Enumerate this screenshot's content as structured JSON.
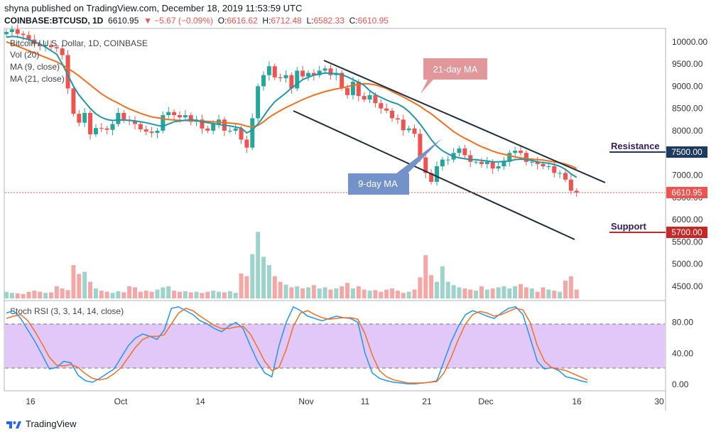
{
  "header": {
    "published": "shyna published on TradingView.com, December 18, 2019 11:53:59 UTC",
    "symbol": "COINBASE:BTCUSD, 1D",
    "price": "6610.95",
    "change": "▼ −5.67 (−0.09%)",
    "o_label": "O:",
    "o_val": "6616.62",
    "h_label": "H:",
    "h_val": "6712.48",
    "l_label": "L:",
    "l_val": "6582.33",
    "c_label": "C:",
    "c_val": "6610.95"
  },
  "legend": {
    "title": "Bitcoin / U.S. Dollar, 1D, COINBASE",
    "vol": "Vol (20)",
    "ma9": "MA (9, close)",
    "ma21": "MA (21, close)",
    "rsi": "Stoch RSI (3, 3, 14, 14, close)"
  },
  "annotations": {
    "ma21_callout": "21-day MA",
    "ma9_callout": "9-day MA",
    "resistance": "Resistance",
    "support": "Support"
  },
  "footer": {
    "brand": "TradingView"
  },
  "colors": {
    "up": "#26a69a",
    "down": "#ef5350",
    "ma9": "#2196a8",
    "ma21": "#f07020",
    "rsi_band": "#e1c8f8",
    "resistance_tag": "#1e3a5f",
    "support_tag": "#c62828"
  },
  "chart_data": {
    "type": "candlestick",
    "x_ticks": [
      "16",
      "Oct",
      "14",
      "Nov",
      "11",
      "21",
      "Dec",
      "16",
      "30"
    ],
    "y_ticks": [
      "10000.00",
      "9500.00",
      "9000.00",
      "8500.00",
      "8000.00",
      "7500.00",
      "7000.00",
      "6500.00",
      "6000.00",
      "5500.00",
      "5000.00",
      "4500.00"
    ],
    "rsi_ticks": [
      "80.00",
      "40.00",
      "0.00"
    ],
    "ylim": [
      4180,
      10300
    ],
    "rsi_ylim": [
      -8,
      108
    ],
    "last_price": "6610.95",
    "resistance_level": "7500.00",
    "support_level": "5700.00",
    "closes": [
      10220,
      10280,
      10180,
      10150,
      10050,
      9950,
      9900,
      9920,
      9880,
      9850,
      9700,
      8950,
      8380,
      8180,
      8400,
      7920,
      8060,
      8050,
      8020,
      8150,
      8400,
      8250,
      8220,
      8150,
      8030,
      7980,
      7950,
      8000,
      8350,
      8420,
      8350,
      8300,
      8350,
      8200,
      8250,
      8050,
      8000,
      8150,
      8250,
      8000,
      8000,
      8050,
      7800,
      7620,
      8280,
      9000,
      9250,
      9450,
      9200,
      9180,
      9250,
      8950,
      9350,
      9220,
      9300,
      9250,
      9350,
      9400,
      9250,
      9300,
      8960,
      8800,
      9100,
      8780,
      8700,
      8800,
      8620,
      8500,
      8450,
      8280,
      8250,
      8010,
      8050,
      7930,
      7400,
      7050,
      6850,
      7200,
      7350,
      7350,
      7500,
      7600,
      7450,
      7300,
      7300,
      7250,
      7300,
      7150,
      7200,
      7300,
      7500,
      7550,
      7500,
      7300,
      7300,
      7250,
      7200,
      7200,
      7050,
      7050,
      6900,
      6650,
      6610
    ],
    "ma9": [
      10100,
      10120,
      10110,
      10080,
      10050,
      10000,
      9950,
      9880,
      9800,
      9720,
      9500,
      9250,
      9000,
      8800,
      8650,
      8500,
      8380,
      8300,
      8250,
      8230,
      8240,
      8240,
      8230,
      8220,
      8200,
      8180,
      8150,
      8120,
      8100,
      8150,
      8200,
      8220,
      8230,
      8250,
      8230,
      8200,
      8180,
      8160,
      8140,
      8120,
      8110,
      8080,
      8060,
      7950,
      8020,
      8150,
      8320,
      8500,
      8650,
      8750,
      8850,
      8960,
      9050,
      9150,
      9200,
      9250,
      9270,
      9300,
      9290,
      9280,
      9260,
      9210,
      9150,
      9090,
      9020,
      8900,
      8810,
      8750,
      8690,
      8640,
      8600,
      8530,
      8430,
      8300,
      8150,
      7980,
      7800,
      7650,
      7550,
      7480,
      7420,
      7390,
      7370,
      7350,
      7350,
      7330,
      7320,
      7300,
      7300,
      7310,
      7320,
      7350,
      7360,
      7350,
      7330,
      7300,
      7280,
      7270,
      7240,
      7200,
      7130,
      7030,
      6950
    ],
    "ma21": [
      10000,
      9950,
      9900,
      9850,
      9800,
      9750,
      9700,
      9650,
      9600,
      9550,
      9480,
      9400,
      9320,
      9230,
      9130,
      9030,
      8930,
      8830,
      8750,
      8680,
      8620,
      8550,
      8490,
      8440,
      8390,
      8350,
      8310,
      8290,
      8270,
      8250,
      8240,
      8230,
      8230,
      8225,
      8220,
      8215,
      8210,
      8200,
      8190,
      8180,
      8170,
      8160,
      8140,
      8100,
      8080,
      8120,
      8200,
      8300,
      8380,
      8450,
      8520,
      8580,
      8640,
      8700,
      8750,
      8800,
      8840,
      8880,
      8910,
      8940,
      8960,
      8990,
      9020,
      9040,
      9060,
      9050,
      9030,
      8990,
      8950,
      8880,
      8820,
      8760,
      8690,
      8620,
      8550,
      8460,
      8380,
      8280,
      8180,
      8080,
      7980,
      7900,
      7830,
      7770,
      7700,
      7640,
      7590,
      7540,
      7500,
      7470,
      7440,
      7410,
      7390,
      7370,
      7360,
      7350,
      7340,
      7320,
      7300,
      7280,
      7250,
      7210,
      7150
    ],
    "volumes": [
      12,
      10,
      9,
      8,
      12,
      14,
      12,
      10,
      11,
      22,
      18,
      15,
      60,
      44,
      48,
      30,
      18,
      14,
      12,
      10,
      13,
      11,
      22,
      20,
      12,
      14,
      12,
      16,
      20,
      22,
      14,
      12,
      13,
      11,
      12,
      10,
      12,
      14,
      12,
      11,
      13,
      10,
      45,
      40,
      80,
      120,
      75,
      60,
      40,
      30,
      25,
      20,
      22,
      18,
      20,
      24,
      18,
      20,
      16,
      18,
      22,
      28,
      18,
      22,
      16,
      14,
      15,
      12,
      16,
      18,
      14,
      10,
      12,
      16,
      38,
      78,
      42,
      30,
      58,
      30,
      24,
      20,
      18,
      16,
      14,
      22,
      16,
      18,
      20,
      22,
      18,
      22,
      26,
      20,
      18,
      12,
      20,
      16,
      14,
      12,
      32,
      40,
      16
    ],
    "stoch_k": [
      92,
      95,
      85,
      70,
      55,
      38,
      20,
      22,
      30,
      28,
      12,
      5,
      3,
      8,
      14,
      20,
      35,
      50,
      60,
      65,
      62,
      58,
      70,
      98,
      100,
      95,
      90,
      82,
      78,
      72,
      68,
      75,
      80,
      72,
      50,
      30,
      15,
      10,
      50,
      80,
      100,
      95,
      88,
      85,
      82,
      85,
      88,
      86,
      85,
      80,
      40,
      15,
      8,
      5,
      3,
      2,
      1,
      1,
      2,
      3,
      5,
      30,
      55,
      75,
      90,
      95,
      92,
      88,
      85,
      92,
      98,
      100,
      90,
      60,
      30,
      20,
      22,
      18,
      10,
      8,
      5,
      3
    ],
    "stoch_d": [
      85,
      88,
      90,
      82,
      68,
      52,
      35,
      25,
      24,
      26,
      22,
      14,
      8,
      6,
      8,
      14,
      22,
      35,
      48,
      58,
      62,
      62,
      64,
      78,
      92,
      98,
      95,
      88,
      82,
      76,
      72,
      72,
      74,
      75,
      65,
      48,
      30,
      18,
      22,
      45,
      75,
      92,
      95,
      90,
      86,
      84,
      85,
      86,
      86,
      84,
      65,
      38,
      18,
      10,
      6,
      4,
      2,
      2,
      2,
      3,
      4,
      15,
      35,
      58,
      78,
      90,
      94,
      92,
      88,
      90,
      94,
      98,
      96,
      80,
      50,
      30,
      22,
      20,
      18,
      14,
      10,
      6
    ]
  }
}
